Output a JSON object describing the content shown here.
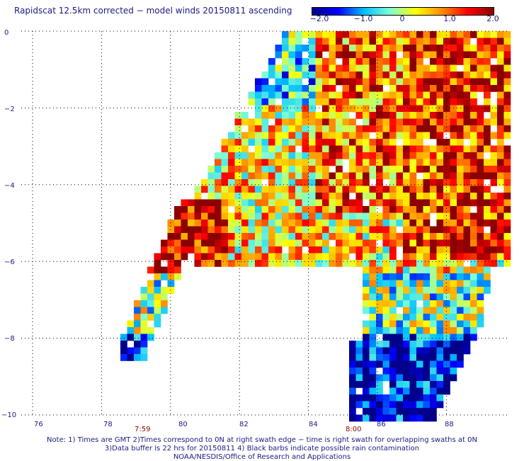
{
  "title": "Rapidscat 12.5km corrected − model winds 20150811 ascending",
  "colorbar": {
    "ticks": [
      "−2.0",
      "−1.0",
      "0",
      "1.0",
      "2.0"
    ],
    "range": [
      -2.0,
      2.0
    ]
  },
  "axes": {
    "x_ticks": [
      "76",
      "78",
      "80",
      "82",
      "84",
      "86",
      "88"
    ],
    "y_ticks": [
      "0",
      "−2",
      "−4",
      "−6",
      "−8",
      "−10"
    ],
    "x_range": [
      75,
      89.5
    ],
    "y_range": [
      -10,
      0
    ]
  },
  "time_labels": [
    "7:59",
    "8:00"
  ],
  "footnotes": [
    "Note: 1) Times are GMT 2)Times correspond to 0N at right swath edge − time is right swath for overlapping swaths at 0N",
    "3)Data buffer is 22 hrs for 20150811 4) Black barbs indicate possible rain contamination",
    "NOAA/NESDIS/Office of Research and Applications"
  ],
  "colors": {
    "colorbar_stops": [
      "#00008b",
      "#0000ff",
      "#00bfff",
      "#7fffd4",
      "#ffff00",
      "#ff8c00",
      "#ff0000",
      "#8b0000"
    ],
    "text": "#1a1a80",
    "time_text": "#8b0000"
  }
}
